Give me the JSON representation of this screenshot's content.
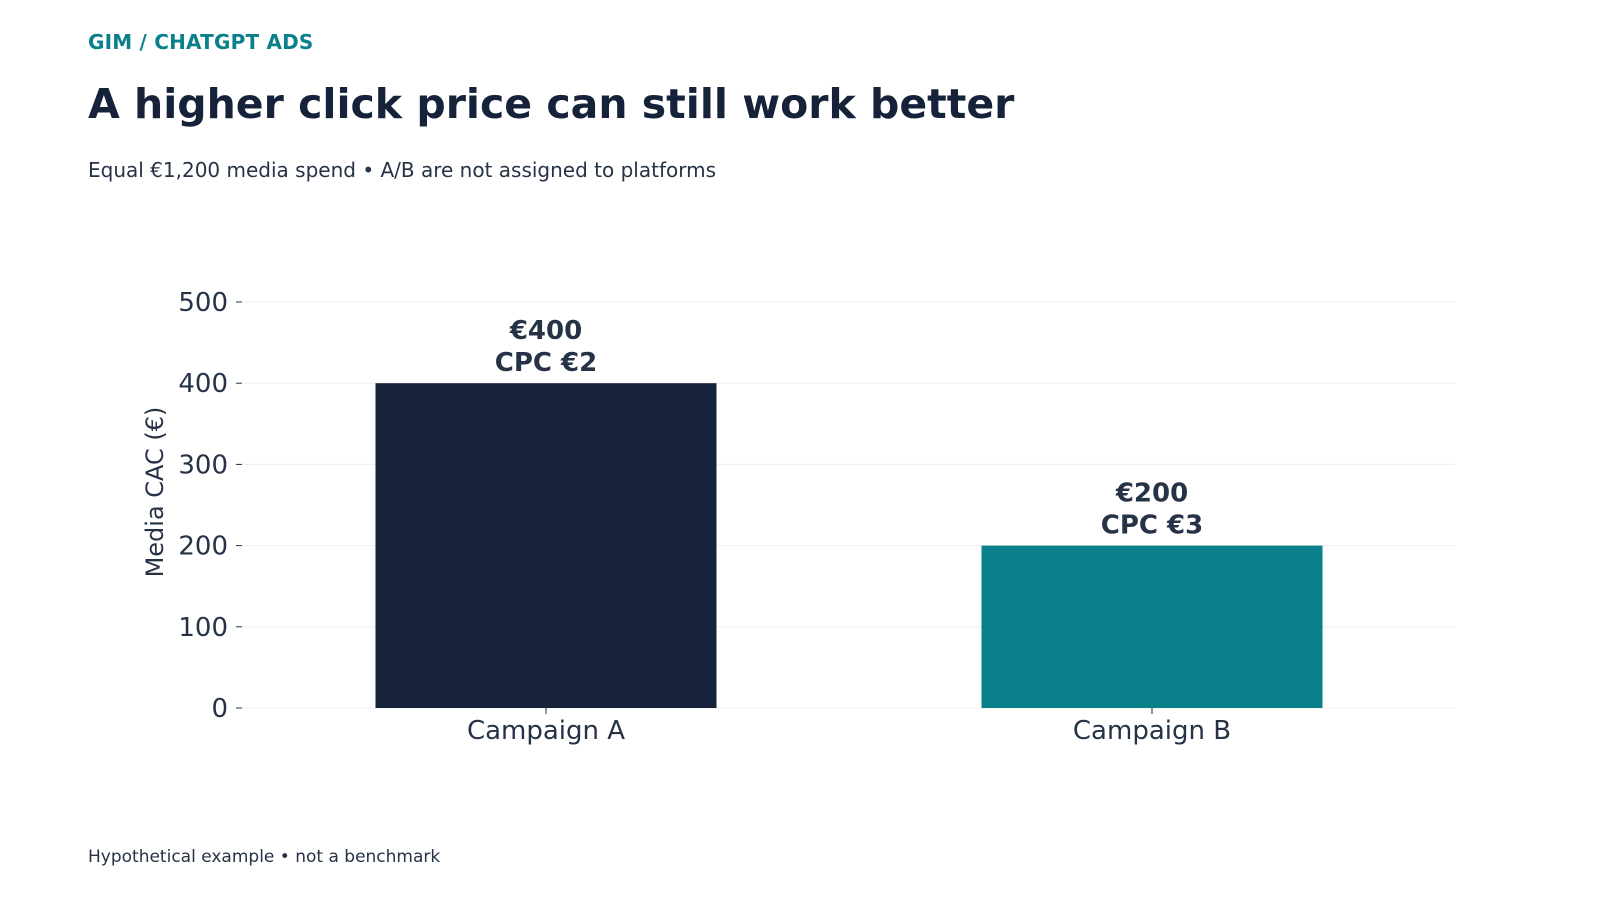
{
  "header": {
    "kicker": "GIM / CHATGPT ADS",
    "title": "A higher click price can still work better",
    "subtitle": "Equal €1,200 media spend • A/B are not assigned to platforms"
  },
  "footer": {
    "note": "Hypothetical example • not a benchmark"
  },
  "colors": {
    "accent": "#0a808b",
    "dark": "#16213a",
    "text": "#263246",
    "grid": "#eeeeee"
  },
  "chart_data": {
    "type": "bar",
    "categories": [
      "Campaign A",
      "Campaign B"
    ],
    "values": [
      400,
      200
    ],
    "bar_colors": [
      "#16213a",
      "#0a808b"
    ],
    "data_labels": [
      [
        "€400",
        "CPC €2"
      ],
      [
        "€200",
        "CPC €3"
      ]
    ],
    "ylabel": "Media CAC (€)",
    "xlabel": "",
    "ylim": [
      0,
      500
    ],
    "yticks": [
      0,
      100,
      200,
      300,
      400,
      500
    ],
    "grid": true,
    "legend": false
  }
}
